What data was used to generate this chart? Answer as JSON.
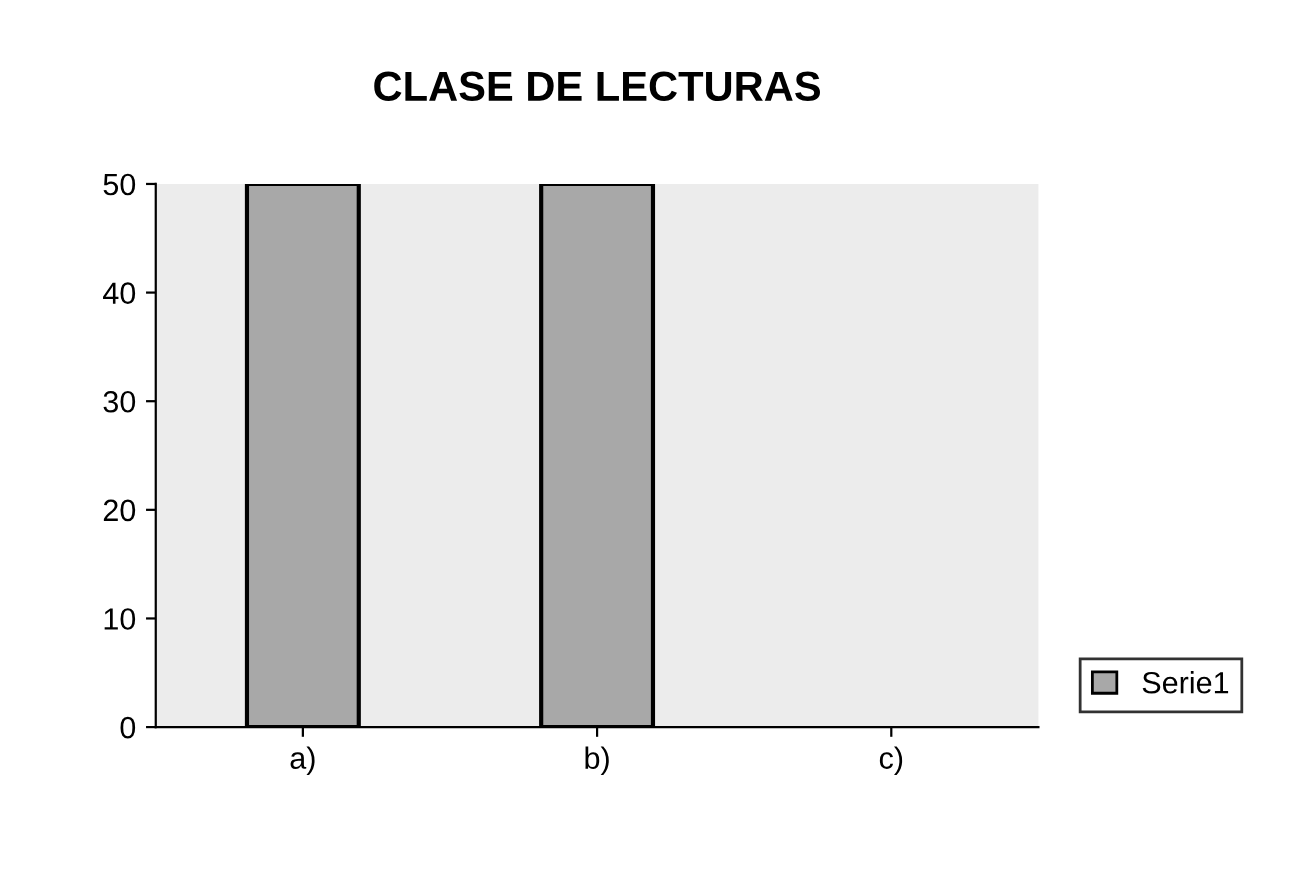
{
  "chart_data": {
    "type": "bar",
    "title": "CLASE DE LECTURAS",
    "categories": [
      "a)",
      "b)",
      "c)"
    ],
    "series": [
      {
        "name": "Serie1",
        "color": "#a8a8a8",
        "values": [
          50,
          50,
          null
        ]
      }
    ],
    "ylim": [
      0,
      50
    ],
    "yticks": [
      0,
      10,
      20,
      30,
      40,
      50
    ],
    "grid": false,
    "legend": "right"
  }
}
